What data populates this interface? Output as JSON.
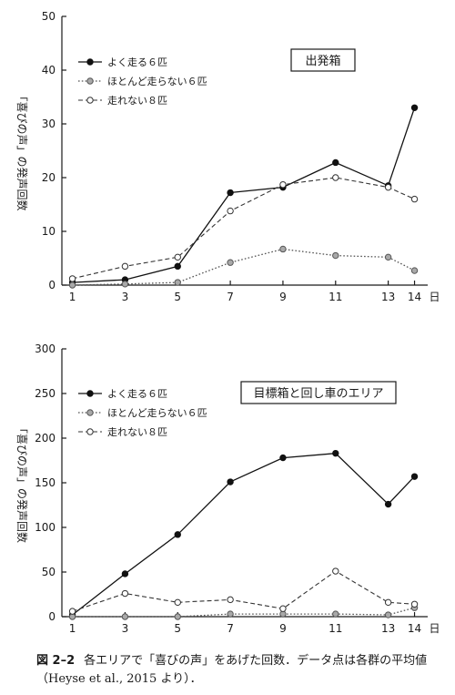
{
  "chart_data": [
    {
      "type": "line",
      "panel_label": "出発箱",
      "ylabel": "「喜びの声」の発声回数",
      "x_unit": "日",
      "x": [
        1,
        3,
        5,
        7,
        9,
        11,
        13,
        14
      ],
      "ylim": [
        0,
        50
      ],
      "yticks": [
        0,
        10,
        20,
        30,
        40,
        50
      ],
      "legend_position": "top-left",
      "grid": false,
      "series": [
        {
          "name": "よく走る６匹",
          "style": "solid-filled",
          "values": [
            0.5,
            1,
            3.5,
            17.2,
            18.2,
            22.8,
            18.5,
            33
          ]
        },
        {
          "name": "ほとんど走らない６匹",
          "style": "dotted-gray",
          "values": [
            0,
            0.2,
            0.5,
            4.2,
            6.7,
            5.5,
            5.2,
            2.7
          ]
        },
        {
          "name": "走れない８匹",
          "style": "dashed-open",
          "values": [
            1.2,
            3.5,
            5.2,
            13.8,
            18.7,
            20.0,
            18.2,
            16.0
          ]
        }
      ]
    },
    {
      "type": "line",
      "panel_label": "目標箱と回し車のエリア",
      "ylabel": "「喜びの声」の発声回数",
      "x_unit": "日",
      "x": [
        1,
        3,
        5,
        7,
        9,
        11,
        13,
        14
      ],
      "ylim": [
        0,
        300
      ],
      "yticks": [
        0,
        50,
        100,
        150,
        200,
        250,
        300
      ],
      "legend_position": "top-left",
      "grid": false,
      "series": [
        {
          "name": "よく走る６匹",
          "style": "solid-filled",
          "values": [
            2,
            48,
            92,
            151,
            178,
            183,
            126,
            157
          ]
        },
        {
          "name": "ほとんど走らない６匹",
          "style": "dotted-gray",
          "values": [
            0,
            0,
            0,
            3,
            3,
            3,
            2,
            10
          ]
        },
        {
          "name": "走れない８匹",
          "style": "dashed-open",
          "values": [
            6,
            26,
            16,
            19,
            9,
            51,
            16,
            14
          ]
        }
      ]
    }
  ],
  "caption": {
    "figure_label": "図 2–2",
    "text": "各エリアで「喜びの声」をあげた回数．データ点は各群の平均値（Heyse et al., 2015 より）．"
  }
}
